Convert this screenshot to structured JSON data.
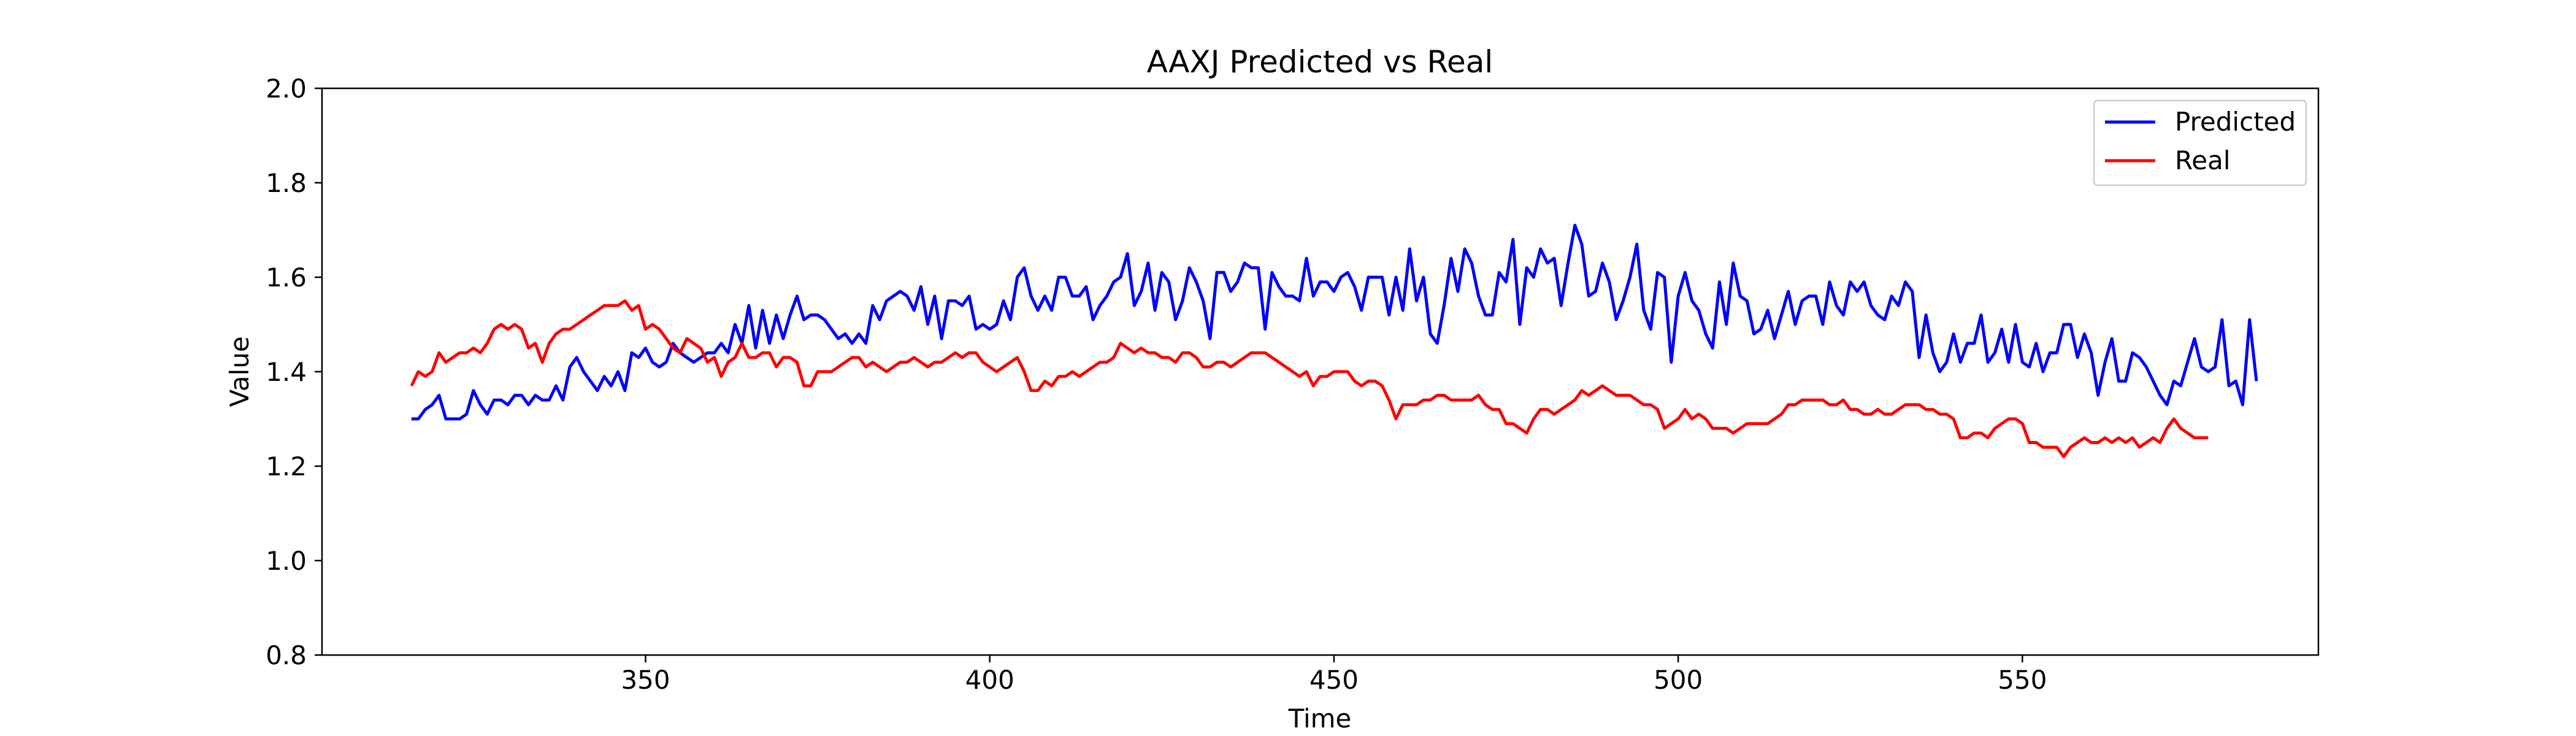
{
  "chart_data": {
    "type": "line",
    "title": "AAXJ Predicted vs Real",
    "xlabel": "Time",
    "ylabel": "Value",
    "xlim": [
      303,
      593
    ],
    "ylim": [
      0.8,
      2.0
    ],
    "xticks": [
      350,
      400,
      450,
      500,
      550
    ],
    "yticks": [
      0.8,
      1.0,
      1.2,
      1.4,
      1.6,
      1.8,
      2.0
    ],
    "xtick_labels": [
      "350",
      "400",
      "450",
      "500",
      "550"
    ],
    "ytick_labels": [
      "0.8",
      "1.0",
      "1.2",
      "1.4",
      "1.6",
      "1.8",
      "2.0"
    ],
    "grid": false,
    "legend_position": "top-right",
    "x_start": 316,
    "x_step": 1,
    "series": [
      {
        "name": "Predicted",
        "color": "#0000ff",
        "values": [
          1.3,
          1.3,
          1.32,
          1.33,
          1.35,
          1.3,
          1.3,
          1.3,
          1.31,
          1.36,
          1.33,
          1.31,
          1.34,
          1.34,
          1.33,
          1.35,
          1.35,
          1.33,
          1.35,
          1.34,
          1.34,
          1.37,
          1.34,
          1.41,
          1.43,
          1.4,
          1.38,
          1.36,
          1.39,
          1.37,
          1.4,
          1.36,
          1.44,
          1.43,
          1.45,
          1.42,
          1.41,
          1.42,
          1.46,
          1.44,
          1.43,
          1.42,
          1.43,
          1.44,
          1.44,
          1.46,
          1.44,
          1.5,
          1.46,
          1.54,
          1.45,
          1.53,
          1.46,
          1.52,
          1.47,
          1.52,
          1.56,
          1.51,
          1.52,
          1.52,
          1.51,
          1.49,
          1.47,
          1.48,
          1.46,
          1.48,
          1.46,
          1.54,
          1.51,
          1.55,
          1.56,
          1.57,
          1.56,
          1.53,
          1.58,
          1.5,
          1.56,
          1.47,
          1.55,
          1.55,
          1.54,
          1.56,
          1.49,
          1.5,
          1.49,
          1.5,
          1.55,
          1.51,
          1.6,
          1.62,
          1.56,
          1.53,
          1.56,
          1.53,
          1.6,
          1.6,
          1.56,
          1.56,
          1.58,
          1.51,
          1.54,
          1.56,
          1.59,
          1.6,
          1.65,
          1.54,
          1.57,
          1.63,
          1.53,
          1.61,
          1.59,
          1.51,
          1.55,
          1.62,
          1.59,
          1.55,
          1.47,
          1.61,
          1.61,
          1.57,
          1.59,
          1.63,
          1.62,
          1.62,
          1.49,
          1.61,
          1.58,
          1.56,
          1.56,
          1.55,
          1.64,
          1.56,
          1.59,
          1.59,
          1.57,
          1.6,
          1.61,
          1.58,
          1.53,
          1.6,
          1.6,
          1.6,
          1.52,
          1.6,
          1.53,
          1.66,
          1.55,
          1.6,
          1.48,
          1.46,
          1.54,
          1.64,
          1.57,
          1.66,
          1.63,
          1.56,
          1.52,
          1.52,
          1.61,
          1.59,
          1.68,
          1.5,
          1.62,
          1.6,
          1.66,
          1.63,
          1.64,
          1.54,
          1.63,
          1.71,
          1.67,
          1.56,
          1.57,
          1.63,
          1.59,
          1.51,
          1.55,
          1.6,
          1.67,
          1.53,
          1.49,
          1.61,
          1.6,
          1.42,
          1.56,
          1.61,
          1.55,
          1.53,
          1.48,
          1.45,
          1.59,
          1.5,
          1.63,
          1.56,
          1.55,
          1.48,
          1.49,
          1.53,
          1.47,
          1.52,
          1.57,
          1.5,
          1.55,
          1.56,
          1.56,
          1.5,
          1.59,
          1.54,
          1.52,
          1.59,
          1.57,
          1.59,
          1.54,
          1.52,
          1.51,
          1.56,
          1.54,
          1.59,
          1.57,
          1.43,
          1.52,
          1.44,
          1.4,
          1.42,
          1.48,
          1.42,
          1.46,
          1.46,
          1.52,
          1.42,
          1.44,
          1.49,
          1.42,
          1.5,
          1.42,
          1.41,
          1.46,
          1.4,
          1.44,
          1.44,
          1.5,
          1.5,
          1.43,
          1.48,
          1.44,
          1.35,
          1.42,
          1.47,
          1.38,
          1.38,
          1.44,
          1.43,
          1.41,
          1.38,
          1.35,
          1.33,
          1.38,
          1.37,
          1.42,
          1.47,
          1.41,
          1.4,
          1.41,
          1.51,
          1.37,
          1.38,
          1.33,
          1.51,
          1.38
        ]
      },
      {
        "name": "Real",
        "color": "#ff0000",
        "values": [
          1.37,
          1.4,
          1.39,
          1.4,
          1.44,
          1.42,
          1.43,
          1.44,
          1.44,
          1.45,
          1.44,
          1.46,
          1.49,
          1.5,
          1.49,
          1.5,
          1.49,
          1.45,
          1.46,
          1.42,
          1.46,
          1.48,
          1.49,
          1.49,
          1.5,
          1.51,
          1.52,
          1.53,
          1.54,
          1.54,
          1.54,
          1.55,
          1.53,
          1.54,
          1.49,
          1.5,
          1.49,
          1.47,
          1.45,
          1.44,
          1.47,
          1.46,
          1.45,
          1.42,
          1.43,
          1.39,
          1.42,
          1.43,
          1.46,
          1.43,
          1.43,
          1.44,
          1.44,
          1.41,
          1.43,
          1.43,
          1.42,
          1.37,
          1.37,
          1.4,
          1.4,
          1.4,
          1.41,
          1.42,
          1.43,
          1.43,
          1.41,
          1.42,
          1.41,
          1.4,
          1.41,
          1.42,
          1.42,
          1.43,
          1.42,
          1.41,
          1.42,
          1.42,
          1.43,
          1.44,
          1.43,
          1.44,
          1.44,
          1.42,
          1.41,
          1.4,
          1.41,
          1.42,
          1.43,
          1.4,
          1.36,
          1.36,
          1.38,
          1.37,
          1.39,
          1.39,
          1.4,
          1.39,
          1.4,
          1.41,
          1.42,
          1.42,
          1.43,
          1.46,
          1.45,
          1.44,
          1.45,
          1.44,
          1.44,
          1.43,
          1.43,
          1.42,
          1.44,
          1.44,
          1.43,
          1.41,
          1.41,
          1.42,
          1.42,
          1.41,
          1.42,
          1.43,
          1.44,
          1.44,
          1.44,
          1.43,
          1.42,
          1.41,
          1.4,
          1.39,
          1.4,
          1.37,
          1.39,
          1.39,
          1.4,
          1.4,
          1.4,
          1.38,
          1.37,
          1.38,
          1.38,
          1.37,
          1.34,
          1.3,
          1.33,
          1.33,
          1.33,
          1.34,
          1.34,
          1.35,
          1.35,
          1.34,
          1.34,
          1.34,
          1.34,
          1.35,
          1.33,
          1.32,
          1.32,
          1.29,
          1.29,
          1.28,
          1.27,
          1.3,
          1.32,
          1.32,
          1.31,
          1.32,
          1.33,
          1.34,
          1.36,
          1.35,
          1.36,
          1.37,
          1.36,
          1.35,
          1.35,
          1.35,
          1.34,
          1.33,
          1.33,
          1.32,
          1.28,
          1.29,
          1.3,
          1.32,
          1.3,
          1.31,
          1.3,
          1.28,
          1.28,
          1.28,
          1.27,
          1.28,
          1.29,
          1.29,
          1.29,
          1.29,
          1.3,
          1.31,
          1.33,
          1.33,
          1.34,
          1.34,
          1.34,
          1.34,
          1.33,
          1.33,
          1.34,
          1.32,
          1.32,
          1.31,
          1.31,
          1.32,
          1.31,
          1.31,
          1.32,
          1.33,
          1.33,
          1.33,
          1.32,
          1.32,
          1.31,
          1.31,
          1.3,
          1.26,
          1.26,
          1.27,
          1.27,
          1.26,
          1.28,
          1.29,
          1.3,
          1.3,
          1.29,
          1.25,
          1.25,
          1.24,
          1.24,
          1.24,
          1.22,
          1.24,
          1.25,
          1.26,
          1.25,
          1.25,
          1.26,
          1.25,
          1.26,
          1.25,
          1.26,
          1.24,
          1.25,
          1.26,
          1.25,
          1.28,
          1.3,
          1.28,
          1.27,
          1.26,
          1.26,
          1.26
        ]
      }
    ]
  }
}
